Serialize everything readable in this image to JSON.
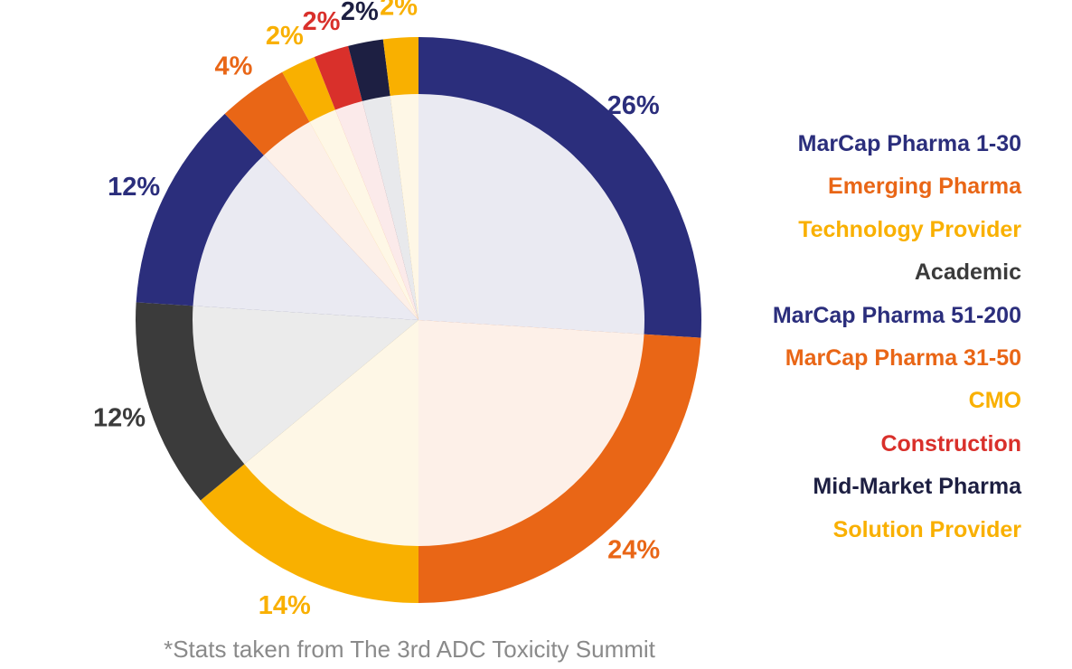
{
  "chart_data": {
    "type": "pie",
    "style": "donut-ring with light-tinted inner slices",
    "slices": [
      {
        "label": "MarCap Pharma 1-30",
        "value": 26,
        "display": "26%",
        "color": "#2b2e7c"
      },
      {
        "label": "Emerging Pharma",
        "value": 24,
        "display": "24%",
        "color": "#e96616"
      },
      {
        "label": "Technology Provider",
        "value": 14,
        "display": "14%",
        "color": "#f9b000"
      },
      {
        "label": "Academic",
        "value": 12,
        "display": "12%",
        "color": "#3b3b3b"
      },
      {
        "label": "MarCap Pharma 51-200",
        "value": 12,
        "display": "12%",
        "color": "#2b2e7c"
      },
      {
        "label": "MarCap Pharma 31-50",
        "value": 4,
        "display": "4%",
        "color": "#e96616"
      },
      {
        "label": "CMO",
        "value": 2,
        "display": "2%",
        "color": "#f9b000"
      },
      {
        "label": "Construction",
        "value": 2,
        "display": "2%",
        "color": "#d9302b"
      },
      {
        "label": "Mid-Market Pharma",
        "value": 2,
        "display": "2%",
        "color": "#1d1f42"
      },
      {
        "label": "Solution Provider",
        "value": 2,
        "display": "2%",
        "color": "#f9b000"
      }
    ],
    "legend_position": "right",
    "start_angle": "12 o'clock, clockwise"
  },
  "legend": {
    "items": [
      {
        "label": "MarCap Pharma 1-30",
        "color": "#2b2e7c"
      },
      {
        "label": "Emerging Pharma",
        "color": "#e96616"
      },
      {
        "label": "Technology Provider",
        "color": "#f9b000"
      },
      {
        "label": "Academic",
        "color": "#3b3b3b"
      },
      {
        "label": "MarCap Pharma 51-200",
        "color": "#2b2e7c"
      },
      {
        "label": "MarCap Pharma 31-50",
        "color": "#e96616"
      },
      {
        "label": "CMO",
        "color": "#f9b000"
      },
      {
        "label": "Construction",
        "color": "#d9302b"
      },
      {
        "label": "Mid-Market Pharma",
        "color": "#1d1f42"
      },
      {
        "label": "Solution Provider",
        "color": "#f9b000"
      }
    ]
  },
  "footnote": "*Stats taken from The 3rd ADC Toxicity Summit"
}
